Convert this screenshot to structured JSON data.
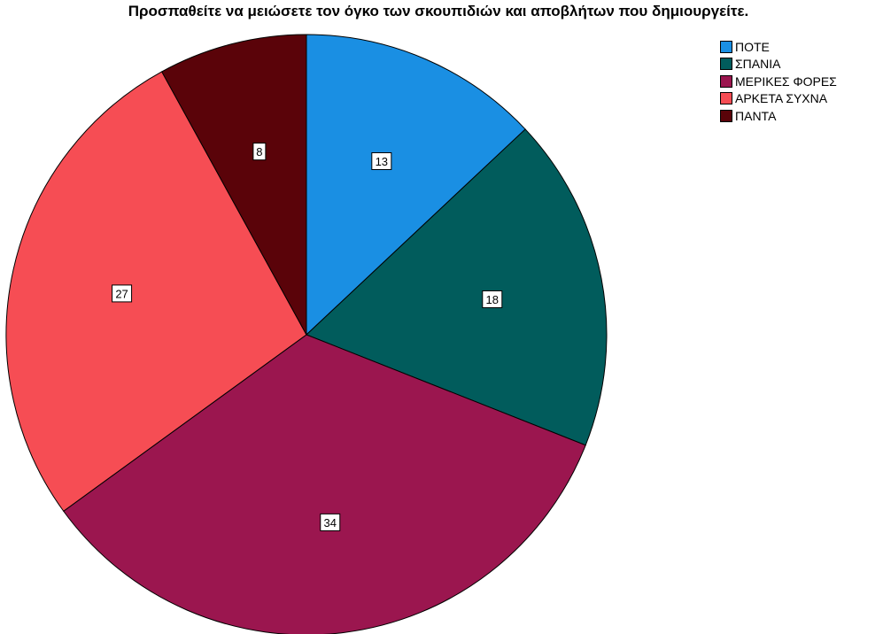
{
  "chart_data": {
    "type": "pie",
    "title": "Προσπαθείτε να μειώσετε τον όγκο των σκουπιδιών και αποβλήτων που δημιουργείτε.",
    "categories": [
      "ΠΟΤΕ",
      "ΣΠΑΝΙΑ",
      "ΜΕΡΙΚΕΣ ΦΟΡΕΣ",
      "ΑΡΚΕΤΑ ΣΥΧΝΑ",
      "ΠΑΝΤΑ"
    ],
    "values": [
      13,
      18,
      34,
      27,
      8
    ],
    "colors": [
      "#1a8fe3",
      "#015c5c",
      "#9b164f",
      "#f64d54",
      "#5a0309"
    ],
    "legend": {
      "position": "top-right",
      "entries": [
        "ΠΟΤΕ",
        "ΣΠΑΝΙΑ",
        "ΜΕΡΙΚΕΣ ΦΟΡΕΣ",
        "ΑΡΚΕΤΑ ΣΥΧΝΑ",
        "ΠΑΝΤΑ"
      ]
    },
    "start_angle": "12 o'clock",
    "direction": "clockwise",
    "data_labels": true
  }
}
